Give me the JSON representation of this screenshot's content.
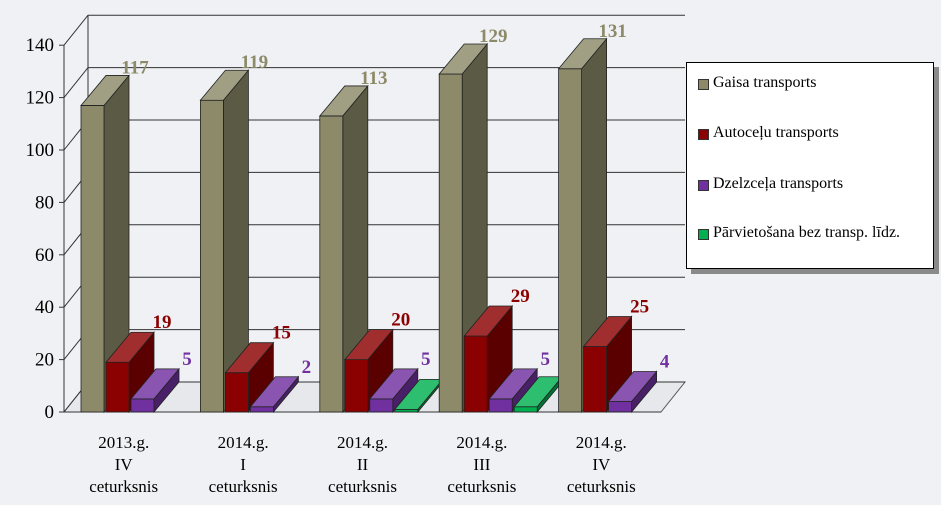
{
  "chart_data": {
    "type": "bar",
    "categories": [
      [
        "2013.g.",
        "IV",
        "ceturksnis"
      ],
      [
        "2014.g.",
        "I",
        "ceturksnis"
      ],
      [
        "2014.g.",
        "II",
        "ceturksnis"
      ],
      [
        "2014.g.",
        "III",
        "ceturksnis"
      ],
      [
        "2014.g.",
        "IV",
        "ceturksnis"
      ]
    ],
    "series": [
      {
        "name": "Gaisa transports",
        "color": "#8c8a68",
        "values": [
          117,
          119,
          113,
          129,
          131
        ]
      },
      {
        "name": "Autoceļu transports",
        "color": "#8b0000",
        "values": [
          19,
          15,
          20,
          29,
          25
        ]
      },
      {
        "name": "Dzelzceļa transports",
        "color": "#7030a0",
        "values": [
          5,
          2,
          5,
          5,
          4
        ]
      },
      {
        "name": "Pārvietošana bez transp. līdz.",
        "color": "#00b050",
        "values": [
          null,
          null,
          1,
          2,
          null
        ]
      }
    ],
    "ylim": [
      0,
      140
    ],
    "yticks": [
      0,
      20,
      40,
      60,
      80,
      100,
      120,
      140
    ],
    "grid": true,
    "legend_position": "right",
    "style": "3d-bar"
  }
}
